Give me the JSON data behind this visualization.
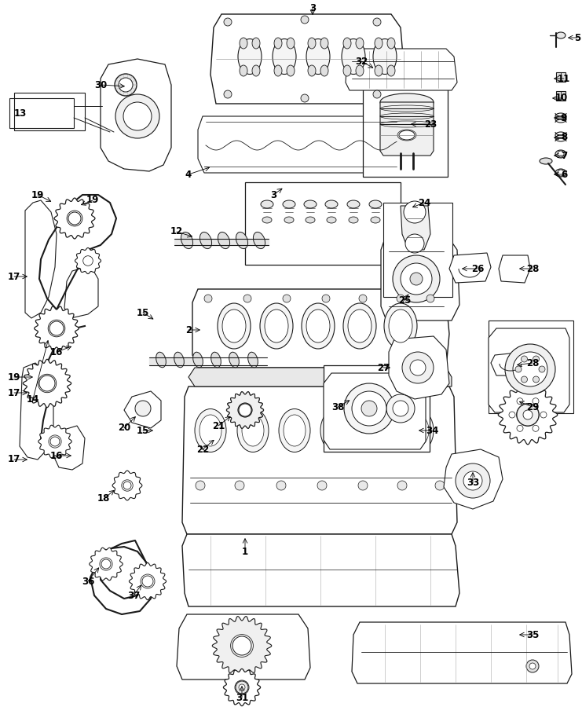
{
  "fig_width": 7.41,
  "fig_height": 9.0,
  "dpi": 100,
  "background_color": "#ffffff",
  "label_fontsize": 8.5,
  "label_fontweight": "bold",
  "line_color": "#1a1a1a",
  "annotations": [
    [
      "1",
      315,
      668,
      315,
      700
    ],
    [
      "2",
      282,
      455,
      258,
      455
    ],
    [
      "3",
      395,
      22,
      395,
      10
    ],
    [
      "3",
      395,
      242,
      380,
      255
    ],
    [
      "4",
      272,
      210,
      240,
      220
    ],
    [
      "5",
      720,
      52,
      732,
      52
    ],
    [
      "6",
      700,
      218,
      716,
      218
    ],
    [
      "7",
      700,
      195,
      716,
      195
    ],
    [
      "8",
      700,
      172,
      716,
      172
    ],
    [
      "9",
      700,
      148,
      716,
      148
    ],
    [
      "10",
      698,
      125,
      712,
      125
    ],
    [
      "11",
      700,
      100,
      716,
      100
    ],
    [
      "12",
      248,
      298,
      222,
      292
    ],
    [
      "13",
      18,
      142,
      18,
      142
    ],
    [
      "14",
      62,
      488,
      48,
      510
    ],
    [
      "15",
      200,
      402,
      184,
      392
    ],
    [
      "15",
      200,
      545,
      184,
      548
    ],
    [
      "16",
      98,
      432,
      80,
      448
    ],
    [
      "16",
      98,
      578,
      80,
      580
    ],
    [
      "17",
      38,
      348,
      22,
      348
    ],
    [
      "17",
      38,
      498,
      22,
      505
    ],
    [
      "17",
      38,
      590,
      22,
      590
    ],
    [
      "18",
      148,
      618,
      138,
      632
    ],
    [
      "19",
      62,
      278,
      48,
      262
    ],
    [
      "19",
      90,
      275,
      110,
      262
    ],
    [
      "19",
      50,
      480,
      22,
      480
    ],
    [
      "20",
      178,
      530,
      162,
      545
    ],
    [
      "21",
      298,
      522,
      282,
      538
    ],
    [
      "22",
      282,
      555,
      268,
      568
    ],
    [
      "23",
      528,
      155,
      548,
      155
    ],
    [
      "24",
      528,
      272,
      538,
      260
    ],
    [
      "25",
      525,
      368,
      518,
      378
    ],
    [
      "26",
      590,
      342,
      608,
      342
    ],
    [
      "27",
      498,
      468,
      488,
      468
    ],
    [
      "28",
      660,
      348,
      678,
      342
    ],
    [
      "28",
      658,
      468,
      678,
      465
    ],
    [
      "29",
      660,
      508,
      678,
      515
    ],
    [
      "30",
      165,
      112,
      130,
      108
    ],
    [
      "31",
      305,
      868,
      305,
      882
    ],
    [
      "32",
      478,
      88,
      462,
      78
    ],
    [
      "33",
      602,
      595,
      602,
      612
    ],
    [
      "34",
      530,
      548,
      548,
      548
    ],
    [
      "35",
      660,
      808,
      678,
      808
    ],
    [
      "36",
      128,
      718,
      115,
      738
    ],
    [
      "37",
      180,
      738,
      172,
      755
    ],
    [
      "38",
      455,
      505,
      438,
      518
    ]
  ]
}
